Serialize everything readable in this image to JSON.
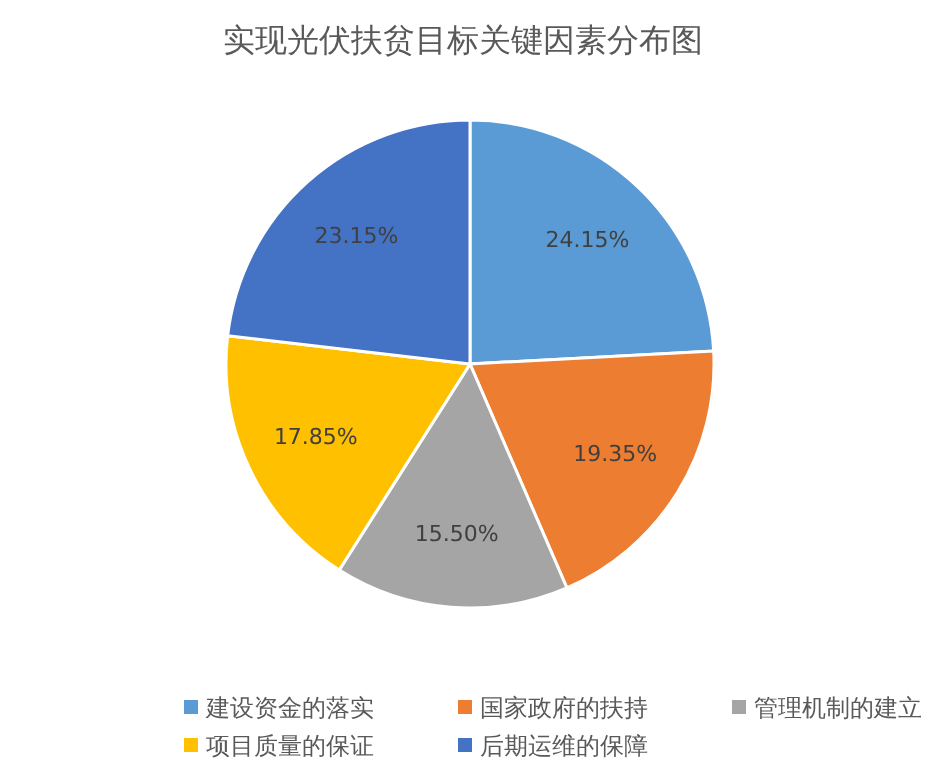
{
  "chart_data": {
    "type": "pie",
    "title": "实现光伏扶贫目标关键因素分布图",
    "categories": [
      "建设资金的落实",
      "国家政府的扶持",
      "管理机制的建立",
      "项目质量的保证",
      "后期运维的保障"
    ],
    "values": [
      24.15,
      19.35,
      15.5,
      17.85,
      23.15
    ],
    "value_labels": [
      "24.15%",
      "19.35%",
      "15.50%",
      "17.85%",
      "23.15%"
    ],
    "colors": [
      "#5b9bd5",
      "#ed7d31",
      "#a5a5a5",
      "#ffc000",
      "#4472c4"
    ],
    "legend": "bottom"
  }
}
